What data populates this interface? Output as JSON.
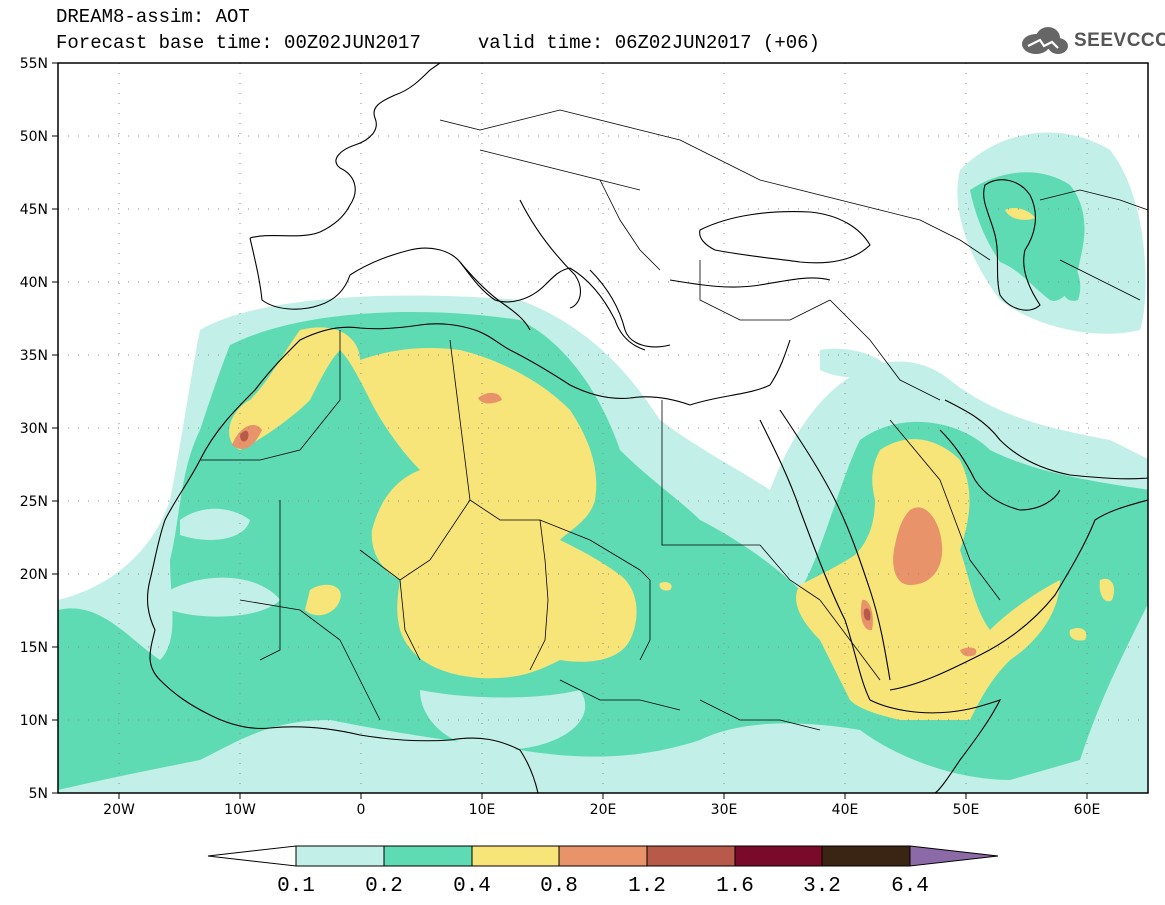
{
  "header": {
    "line1": "DREAM8-assim: AOT",
    "line2": "Forecast base time: 00Z02JUN2017     valid time: 06Z02JUN2017 (+06)"
  },
  "logo": {
    "text": "SEEVCCC",
    "icon": "cloud-icon"
  },
  "map": {
    "lon_range": [
      -25,
      65
    ],
    "lat_range": [
      5,
      55
    ],
    "lat_ticks": [
      "55N",
      "50N",
      "45N",
      "40N",
      "35N",
      "30N",
      "25N",
      "20N",
      "15N",
      "10N",
      "5N"
    ],
    "lon_ticks": [
      "20W",
      "10W",
      "0",
      "10E",
      "20E",
      "30E",
      "40E",
      "50E",
      "60E"
    ]
  },
  "colorbar": {
    "labels": [
      "0.1",
      "0.2",
      "0.4",
      "0.8",
      "1.2",
      "1.6",
      "3.2",
      "6.4"
    ],
    "colors": [
      "#c2f0e8",
      "#5fdbb4",
      "#f7e57a",
      "#e8936a",
      "#b85a4a",
      "#7a0a2a",
      "#3a2414",
      "#8c6aa8"
    ]
  }
}
